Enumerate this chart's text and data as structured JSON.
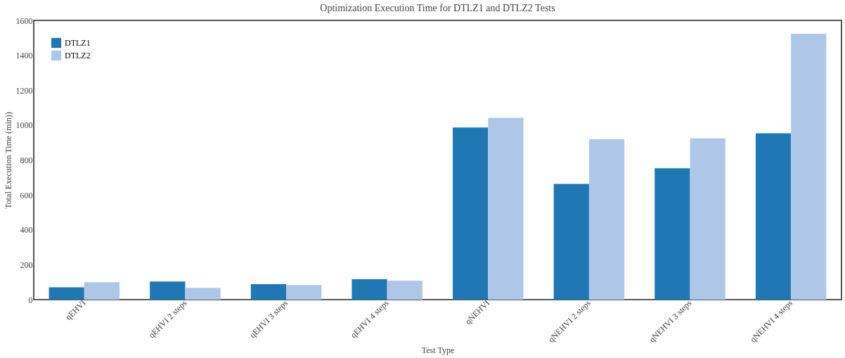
{
  "chart_data": {
    "type": "bar",
    "title": "Optimization Execution Time for DTLZ1 and DTLZ2 Tests",
    "xlabel": "Test Type",
    "ylabel": "Total Execution Time (min))",
    "categories": [
      "qEHVI",
      "qEHVI 2 steps",
      "qEHVI 3 steps",
      "qEHVI 4 steps",
      "qNEHVI",
      "qNEHVI 2 steps",
      "qNEHVI 3 steps",
      "qNEHVI 4 steps"
    ],
    "series": [
      {
        "name": "DTLZ1",
        "color": "#1f77b4",
        "values": [
          71,
          104,
          89,
          117,
          986,
          663,
          753,
          953
        ]
      },
      {
        "name": "DTLZ2",
        "color": "#aec7e8",
        "values": [
          100,
          68,
          84,
          109,
          1042,
          919,
          924,
          1523
        ]
      }
    ],
    "ylim": [
      0,
      1600
    ],
    "yticks": [
      0,
      200,
      400,
      600,
      800,
      1000,
      1200,
      1400,
      1600
    ],
    "grid": false,
    "legend": "top left"
  }
}
